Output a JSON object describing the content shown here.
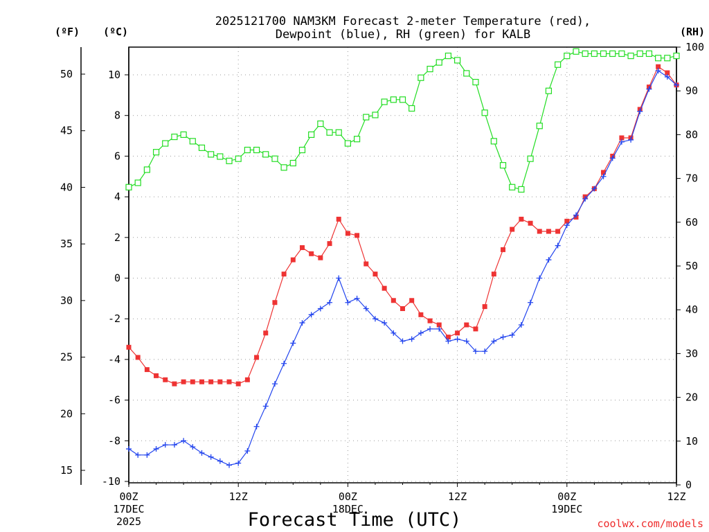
{
  "chart_data": {
    "type": "line",
    "title": [
      "2025121700 NAM3KM Forecast 2-meter Temperature (red),",
      "Dewpoint (blue), RH (green) for KALB"
    ],
    "xlabel": "Forecast Time (UTC)",
    "credit": "coolwx.com/models",
    "units": {
      "left_f": "(ºF)",
      "left_c": "(ºC)",
      "right_rh": "(RH)"
    },
    "x_ticks": [
      {
        "hour": 0,
        "lines": [
          "00Z",
          "17DEC",
          "2025"
        ]
      },
      {
        "hour": 12,
        "lines": [
          "12Z"
        ]
      },
      {
        "hour": 24,
        "lines": [
          "00Z",
          "18DEC"
        ]
      },
      {
        "hour": 36,
        "lines": [
          "12Z"
        ]
      },
      {
        "hour": 48,
        "lines": [
          "00Z",
          "19DEC"
        ]
      },
      {
        "hour": 60,
        "lines": [
          "12Z"
        ]
      }
    ],
    "xlim_hours": [
      0,
      60
    ],
    "ylim_c": [
      -10,
      10
    ],
    "ylim_rh": [
      0,
      100
    ],
    "y_ticks_c": [
      "10",
      "8",
      "6",
      "4",
      "2",
      "0",
      "-2",
      "-4",
      "-6",
      "-8",
      "-10"
    ],
    "y_ticks_f": [
      "50",
      "45",
      "40",
      "35",
      "30",
      "25",
      "20",
      "15"
    ],
    "y_ticks_rh": [
      "100",
      "90",
      "80",
      "70",
      "60",
      "50",
      "40",
      "30",
      "20",
      "10",
      "0"
    ],
    "grid": true,
    "colors": {
      "temperature": "#ee3333",
      "dewpoint": "#2244ee",
      "rh": "#22dd22",
      "frame": "#000000",
      "grid": "#999999"
    },
    "series": [
      {
        "name": "Temperature (°C)",
        "marker": "filled-square",
        "x": [
          0,
          1,
          2,
          3,
          4,
          5,
          6,
          7,
          8,
          9,
          10,
          11,
          12,
          13,
          14,
          15,
          16,
          17,
          18,
          19,
          20,
          21,
          22,
          23,
          24,
          25,
          26,
          27,
          28,
          29,
          30,
          31,
          32,
          33,
          34,
          35,
          36,
          37,
          38,
          39,
          40,
          41,
          42,
          43,
          44,
          45,
          46,
          47,
          48,
          49,
          50,
          51,
          52,
          53,
          54,
          55,
          56,
          57,
          58,
          59,
          60
        ],
        "values": [
          -3.4,
          -3.9,
          -4.5,
          -4.8,
          -5.0,
          -5.2,
          -5.1,
          -5.1,
          -5.1,
          -5.1,
          -5.1,
          -5.1,
          -5.2,
          -5.0,
          -3.9,
          -2.7,
          -1.2,
          0.2,
          0.9,
          1.5,
          1.2,
          1.0,
          1.7,
          2.9,
          2.2,
          2.1,
          0.7,
          0.2,
          -0.5,
          -1.1,
          -1.5,
          -1.1,
          -1.8,
          -2.1,
          -2.3,
          -2.9,
          -2.7,
          -2.3,
          -2.5,
          -1.4,
          0.2,
          1.4,
          2.4,
          2.9,
          2.7,
          2.3,
          2.3,
          2.3,
          2.8,
          3.0,
          4.0,
          4.4,
          5.2,
          6.0,
          6.9,
          6.9,
          8.3,
          9.4,
          10.4,
          10.1,
          9.5
        ]
      },
      {
        "name": "Dewpoint (°C)",
        "marker": "plus",
        "x": [
          0,
          1,
          2,
          3,
          4,
          5,
          6,
          7,
          8,
          9,
          10,
          11,
          12,
          13,
          14,
          15,
          16,
          17,
          18,
          19,
          20,
          21,
          22,
          23,
          24,
          25,
          26,
          27,
          28,
          29,
          30,
          31,
          32,
          33,
          34,
          35,
          36,
          37,
          38,
          39,
          40,
          41,
          42,
          43,
          44,
          45,
          46,
          47,
          48,
          49,
          50,
          51,
          52,
          53,
          54,
          55,
          56,
          57,
          58,
          59,
          60
        ],
        "values": [
          -8.4,
          -8.7,
          -8.7,
          -8.4,
          -8.2,
          -8.2,
          -8.0,
          -8.3,
          -8.6,
          -8.8,
          -9.0,
          -9.2,
          -9.1,
          -8.5,
          -7.3,
          -6.3,
          -5.2,
          -4.2,
          -3.2,
          -2.2,
          -1.8,
          -1.5,
          -1.2,
          0.0,
          -1.2,
          -1.0,
          -1.5,
          -2.0,
          -2.2,
          -2.7,
          -3.1,
          -3.0,
          -2.7,
          -2.5,
          -2.5,
          -3.1,
          -3.0,
          -3.1,
          -3.6,
          -3.6,
          -3.1,
          -2.9,
          -2.8,
          -2.3,
          -1.2,
          0.0,
          0.9,
          1.6,
          2.6,
          3.1,
          3.9,
          4.4,
          5.0,
          5.9,
          6.7,
          6.8,
          8.2,
          9.3,
          10.2,
          9.9,
          9.5
        ]
      },
      {
        "name": "Relative Humidity (%)",
        "marker": "open-square",
        "axis": "right",
        "x": [
          0,
          1,
          2,
          3,
          4,
          5,
          6,
          7,
          8,
          9,
          10,
          11,
          12,
          13,
          14,
          15,
          16,
          17,
          18,
          19,
          20,
          21,
          22,
          23,
          24,
          25,
          26,
          27,
          28,
          29,
          30,
          31,
          32,
          33,
          34,
          35,
          36,
          37,
          38,
          39,
          40,
          41,
          42,
          43,
          44,
          45,
          46,
          47,
          48,
          49,
          50,
          51,
          52,
          53,
          54,
          55,
          56,
          57,
          58,
          59,
          60
        ],
        "values": [
          68,
          69,
          72,
          76,
          78,
          79.5,
          80,
          78.5,
          77,
          75.5,
          75,
          74,
          74.5,
          76.5,
          76.5,
          75.5,
          74.5,
          72.5,
          73.5,
          76.5,
          80,
          82.5,
          80.5,
          80.5,
          78,
          79,
          84,
          84.5,
          87.5,
          88,
          88,
          86,
          93,
          95,
          96.5,
          98,
          97,
          94,
          92,
          85,
          78.5,
          73,
          68,
          67.5,
          74.5,
          82,
          90,
          96,
          98,
          99,
          98.5,
          98.5,
          98.5,
          98.5,
          98.5,
          98,
          98.5,
          98.5,
          97.5,
          97.5,
          98
        ]
      }
    ]
  }
}
